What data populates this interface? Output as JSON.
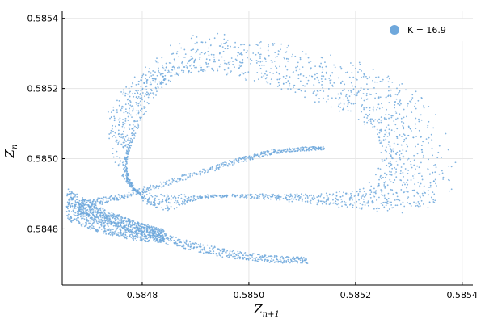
{
  "chart_data": {
    "type": "scatter",
    "title": "",
    "xlabel": "Z",
    "xlabel_sub": "n+1",
    "ylabel": "Z",
    "ylabel_sub": "n",
    "xlim": [
      0.58465,
      0.58542
    ],
    "ylim": [
      0.58464,
      0.58542
    ],
    "xticks": [
      0.5848,
      0.585,
      0.5852,
      0.5854
    ],
    "xtick_labels": [
      "0.5848",
      "0.5850",
      "0.5852",
      "0.5854"
    ],
    "yticks": [
      0.5848,
      0.585,
      0.5852,
      0.5854
    ],
    "ytick_labels": [
      "0.5848",
      "0.5850",
      "0.5852",
      "0.5854"
    ],
    "grid": true,
    "legend_position": "top-right",
    "series": [
      {
        "name": "K = 16.9",
        "color": "#6fa8dc",
        "marker": "dot",
        "attractor_skeleton": [
          {
            "part": "outer-loop",
            "points": [
              [
                0.58484,
                0.58485
              ],
              [
                0.58476,
                0.58495
              ],
              [
                0.58473,
                0.5851
              ],
              [
                0.58478,
                0.58523
              ],
              [
                0.5849,
                0.58536
              ],
              [
                0.58505,
                0.58533
              ],
              [
                0.5852,
                0.58528
              ],
              [
                0.58533,
                0.58518
              ],
              [
                0.58539,
                0.58495
              ],
              [
                0.58531,
                0.58485
              ],
              [
                0.58512,
                0.58487
              ],
              [
                0.58493,
                0.58489
              ]
            ]
          },
          {
            "part": "inner-loop",
            "points": [
              [
                0.58478,
                0.58492
              ],
              [
                0.5848,
                0.5851
              ],
              [
                0.58488,
                0.58524
              ],
              [
                0.58505,
                0.5852
              ],
              [
                0.5852,
                0.5851
              ],
              [
                0.58524,
                0.58502
              ],
              [
                0.58521,
                0.58492
              ],
              [
                0.58505,
                0.5849
              ]
            ]
          },
          {
            "part": "upper-wing",
            "points": [
              [
                0.5847,
                0.58487
              ],
              [
                0.5848,
                0.58491
              ],
              [
                0.58495,
                0.58498
              ],
              [
                0.58505,
                0.58502
              ],
              [
                0.58514,
                0.58503
              ]
            ]
          },
          {
            "part": "lower-wing",
            "points": [
              [
                0.58468,
                0.58486
              ],
              [
                0.58476,
                0.58482
              ],
              [
                0.58487,
                0.58476
              ],
              [
                0.585,
                0.58472
              ],
              [
                0.58511,
                0.58471
              ]
            ]
          },
          {
            "part": "left-knot",
            "points": [
              [
                0.58466,
                0.58487
              ],
              [
                0.5847,
                0.58484
              ],
              [
                0.58475,
                0.58481
              ],
              [
                0.5848,
                0.58479
              ],
              [
                0.58484,
                0.58478
              ]
            ]
          }
        ]
      }
    ]
  }
}
